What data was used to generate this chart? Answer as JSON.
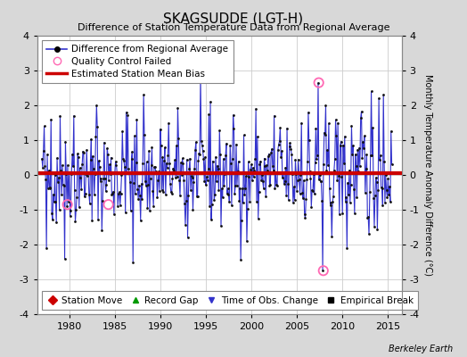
{
  "title": "SKAGSUDDE (LGT-H)",
  "subtitle": "Difference of Station Temperature Data from Regional Average",
  "ylabel": "Monthly Temperature Anomaly Difference (°C)",
  "credit": "Berkeley Earth",
  "xlim": [
    1976.5,
    2016.5
  ],
  "ylim": [
    -4,
    4
  ],
  "yticks": [
    -4,
    -3,
    -2,
    -1,
    0,
    1,
    2,
    3,
    4
  ],
  "xticks": [
    1980,
    1985,
    1990,
    1995,
    2000,
    2005,
    2010,
    2015
  ],
  "mean_bias": 0.05,
  "fig_bg_color": "#d8d8d8",
  "plot_bg_color": "#ffffff",
  "line_color": "#3333cc",
  "dot_color": "#111111",
  "bias_color": "#cc0000",
  "qc_fail_color": "#ff69b4",
  "qc_times": [
    2007.4,
    2007.9,
    1979.8,
    1984.3
  ],
  "qc_values": [
    2.65,
    -2.75,
    -0.85,
    -0.85
  ],
  "seed": 42
}
